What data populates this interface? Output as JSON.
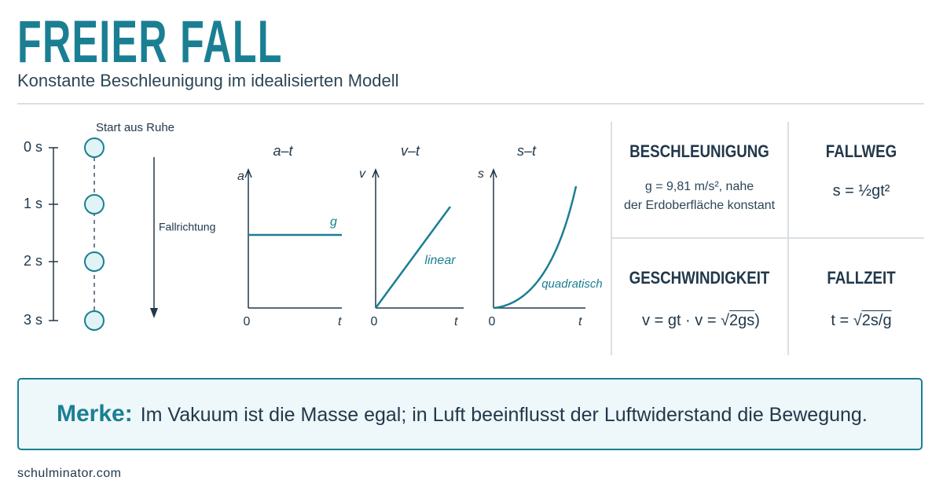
{
  "header": {
    "title": "FREIER FALL",
    "subtitle": "Konstante Beschleunigung im idealisierten Modell"
  },
  "timeline": {
    "start_label": "Start aus Ruhe",
    "ticks": [
      "0 s",
      "1 s",
      "2 s",
      "3 s"
    ],
    "direction_label": "Fallrichtung"
  },
  "graphs": [
    {
      "title": "a–t",
      "y_label": "a",
      "origin": "0",
      "x_label": "t",
      "curve_label": "g"
    },
    {
      "title": "v–t",
      "y_label": "v",
      "origin": "0",
      "x_label": "t",
      "curve_label": "linear"
    },
    {
      "title": "s–t",
      "y_label": "s",
      "origin": "0",
      "x_label": "t",
      "curve_label": "quadratisch"
    }
  ],
  "cards": [
    {
      "title": "BESCHLEUNIGUNG",
      "lines": [
        "g = 9,81 m/s², nahe",
        "der Erdoberfläche konstant"
      ]
    },
    {
      "title": "FALLWEG",
      "formula": [
        "s = ½gt²"
      ]
    },
    {
      "title": "GESCHWINDIGKEIT",
      "formula": [
        "v = gt · v = √",
        "2gs",
        ")"
      ]
    },
    {
      "title": "FALLZEIT",
      "formula": [
        "t = √",
        "2s/g"
      ]
    }
  ],
  "note": {
    "label": "Merke:",
    "text": "Im Vakuum ist die Masse egal; in Luft beeinflusst der Luftwiderstand die Bewegung."
  },
  "footer": {
    "text": "schulminator.com"
  }
}
